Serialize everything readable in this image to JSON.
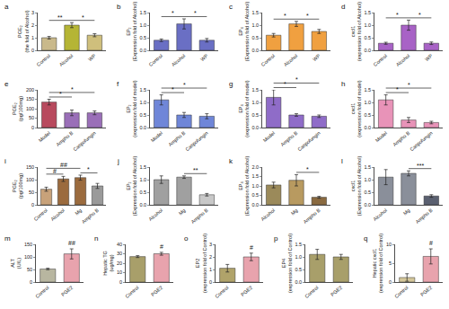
{
  "chart_data": [
    {
      "type": "bar",
      "title": "a",
      "ylabel": "PGE₂ (the fold of Alcohol)",
      "categories": [
        "Control",
        "Alcohol",
        "WP"
      ],
      "values": [
        1.0,
        2.0,
        1.2
      ],
      "errors": [
        0.1,
        0.2,
        0.12
      ],
      "colors": [
        "#c9b98b",
        "#b5b535",
        "#cfbf7c"
      ],
      "ylim": [
        0,
        3
      ],
      "yticks": [
        0,
        1,
        2,
        3
      ],
      "grid": false,
      "annotations": [
        {
          "text": "**",
          "between": [
            "Control",
            "Alcohol"
          ]
        },
        {
          "text": "*",
          "between": [
            "Alcohol",
            "WP"
          ]
        }
      ]
    },
    {
      "type": "bar",
      "title": "b",
      "ylabel": "EP₂ (Expression fold of Alcohol)",
      "categories": [
        "Control",
        "Alcohol",
        "WP"
      ],
      "values": [
        0.4,
        1.05,
        0.4
      ],
      "errors": [
        0.05,
        0.2,
        0.07
      ],
      "colors": [
        "#6a6fc4",
        "#6a6fc4",
        "#6a6fc4"
      ],
      "ylim": [
        0,
        1.5
      ],
      "yticks": [
        {
          "value": 0,
          "label": "0.0"
        },
        0.5,
        {
          "value": 1,
          "label": "1.0"
        },
        1.5
      ],
      "grid": false,
      "annotations": [
        {
          "text": "*",
          "between": [
            "Control",
            "Alcohol"
          ]
        },
        {
          "text": "*",
          "between": [
            "Alcohol",
            "WP"
          ]
        }
      ]
    },
    {
      "type": "bar",
      "title": "c",
      "ylabel": "EP₄ (Expression fold of Alcohol)",
      "categories": [
        "Control",
        "Alcohol",
        "WP"
      ],
      "values": [
        0.6,
        1.05,
        0.75
      ],
      "errors": [
        0.07,
        0.1,
        0.08
      ],
      "colors": [
        "#f0a040",
        "#f0a040",
        "#f0a040"
      ],
      "ylim": [
        0,
        1.5
      ],
      "yticks": [
        {
          "value": 0,
          "label": "0.0"
        },
        0.5,
        {
          "value": 1,
          "label": "1.0"
        },
        1.5
      ],
      "grid": false,
      "annotations": [
        {
          "text": "*",
          "between": [
            "Control",
            "Alcohol"
          ]
        },
        {
          "text": "*",
          "between": [
            "Alcohol",
            "WP"
          ]
        }
      ]
    },
    {
      "type": "bar",
      "title": "d",
      "ylabel": "cxcl1 (expression fold of Alcohol)",
      "categories": [
        "Control",
        "Alcohol",
        "WP"
      ],
      "values": [
        0.28,
        1.0,
        0.28
      ],
      "errors": [
        0.04,
        0.2,
        0.05
      ],
      "colors": [
        "#a862c6",
        "#a862c6",
        "#a862c6"
      ],
      "ylim": [
        0,
        1.5
      ],
      "yticks": [
        {
          "value": 0,
          "label": "0.0"
        },
        0.5,
        {
          "value": 1,
          "label": "1.0"
        },
        1.5
      ],
      "grid": false,
      "annotations": [
        {
          "text": "*",
          "between": [
            "Control",
            "Alcohol"
          ]
        },
        {
          "text": "*",
          "between": [
            "Alcohol",
            "WP"
          ]
        }
      ]
    },
    {
      "type": "bar",
      "title": "e",
      "ylabel": "PGE₂ (pg/100mg)",
      "categories": [
        "Model",
        "Ampho B",
        "Caspofungin"
      ],
      "values": [
        135,
        78,
        78
      ],
      "errors": [
        15,
        15,
        10
      ],
      "colors": [
        "#b84a5e",
        "#9a6fb8",
        "#9a6fb8"
      ],
      "ylim": [
        0,
        200
      ],
      "yticks": [
        0,
        50,
        100,
        150,
        200
      ],
      "grid": false,
      "annotations": [
        {
          "text": "*",
          "between": [
            "Model",
            "Ampho B"
          ]
        },
        {
          "text": "*",
          "between": [
            "Model",
            "Caspofungin"
          ]
        }
      ]
    },
    {
      "type": "bar",
      "title": "f",
      "ylabel": "EP₂ (expression fold of model)",
      "categories": [
        "Model",
        "Ampho B",
        "Caspofungin"
      ],
      "values": [
        1.1,
        0.5,
        0.45
      ],
      "errors": [
        0.2,
        0.1,
        0.1
      ],
      "colors": [
        "#6f86d8",
        "#6f86d8",
        "#6f86d8"
      ],
      "ylim": [
        0,
        1.5
      ],
      "yticks": [
        {
          "value": 0,
          "label": "0.0"
        },
        0.5,
        {
          "value": 1,
          "label": "1.0"
        },
        1.5
      ],
      "grid": false,
      "annotations": [
        {
          "text": "*",
          "between": [
            "Model",
            "Ampho B"
          ]
        },
        {
          "text": "*",
          "between": [
            "Model",
            "Caspofungin"
          ]
        }
      ]
    },
    {
      "type": "bar",
      "title": "g",
      "ylabel": "EP₄ (expression fold of model)",
      "categories": [
        "Model",
        "Ampho B",
        "Caspofungin"
      ],
      "values": [
        1.2,
        0.5,
        0.45
      ],
      "errors": [
        0.3,
        0.05,
        0.05
      ],
      "colors": [
        "#8f6cc8",
        "#8f6cc8",
        "#8f6cc8"
      ],
      "ylim": [
        0,
        1.5
      ],
      "yticks": [
        {
          "value": 0,
          "label": "0.0"
        },
        0.5,
        {
          "value": 1,
          "label": "1.0"
        },
        1.5
      ],
      "grid": false,
      "annotations": [
        {
          "text": "*",
          "between": [
            "Model",
            "Ampho B"
          ]
        },
        {
          "text": "*",
          "between": [
            "Model",
            "Caspofungin"
          ]
        }
      ]
    },
    {
      "type": "bar",
      "title": "h",
      "ylabel": "cxcl1 (expression fold of model)",
      "categories": [
        "Model",
        "Ampho B",
        "Caspofungin"
      ],
      "values": [
        1.1,
        0.3,
        0.2
      ],
      "errors": [
        0.2,
        0.1,
        0.05
      ],
      "colors": [
        "#e893b8",
        "#e893b8",
        "#e893b8"
      ],
      "ylim": [
        0,
        1.5
      ],
      "yticks": [
        {
          "value": 0,
          "label": "0.0"
        },
        0.5,
        {
          "value": 1,
          "label": "1.0"
        },
        1.5
      ],
      "grid": false,
      "annotations": [
        {
          "text": "*",
          "between": [
            "Model",
            "Ampho B"
          ]
        },
        {
          "text": "*",
          "between": [
            "Model",
            "Caspofungin"
          ]
        }
      ]
    },
    {
      "type": "bar",
      "title": "i",
      "ylabel": "PGE₂ (pg/100mg)",
      "categories": [
        "Control",
        "Alcohol",
        "Mg",
        "Ampho B"
      ],
      "values": [
        62,
        103,
        108,
        75
      ],
      "errors": [
        8,
        10,
        10,
        10
      ],
      "colors": [
        "#c8a27a",
        "#9b6b3e",
        "#9b6b3e",
        "#9a9a9a"
      ],
      "ylim": [
        0,
        150
      ],
      "yticks": [
        0,
        50,
        100,
        150
      ],
      "grid": false,
      "annotations": [
        {
          "text": "#",
          "between": [
            "Control",
            "Alcohol"
          ]
        },
        {
          "text": "##",
          "between": [
            "Control",
            "Mg"
          ]
        },
        {
          "text": "*",
          "between": [
            "Mg",
            "Ampho B"
          ]
        }
      ]
    },
    {
      "type": "bar",
      "title": "j",
      "ylabel": "EP₂ (Expression fold of Alcohol)",
      "categories": [
        "Alcohol",
        "Mg",
        "Ampho B"
      ],
      "values": [
        1.0,
        1.1,
        0.4
      ],
      "errors": [
        0.15,
        0.05,
        0.05
      ],
      "colors": [
        "#a0a0a0",
        "#a0a0a0",
        "#c8c8c8"
      ],
      "ylim": [
        0,
        1.5
      ],
      "yticks": [
        {
          "value": 0,
          "label": "0.0"
        },
        0.5,
        {
          "value": 1,
          "label": "1.0"
        },
        1.5
      ],
      "grid": false,
      "annotations": [
        {
          "text": "**",
          "between": [
            "Mg",
            "Ampho B"
          ]
        }
      ]
    },
    {
      "type": "bar",
      "title": "k",
      "ylabel": "EP₄ (Expression fold of Alcohol)",
      "categories": [
        "Alcohol",
        "Mg",
        "Ampho B"
      ],
      "values": [
        1.05,
        1.3,
        0.4
      ],
      "errors": [
        0.15,
        0.3,
        0.05
      ],
      "colors": [
        "#9b8a5a",
        "#b89a60",
        "#8a6a40"
      ],
      "ylim": [
        0,
        2
      ],
      "yticks": [
        {
          "value": 0,
          "label": "0.0"
        },
        0.5,
        {
          "value": 1,
          "label": "1.0"
        },
        1.5,
        {
          "value": 2,
          "label": "2.0"
        }
      ],
      "grid": false,
      "annotations": [
        {
          "text": "*",
          "between": [
            "Mg",
            "Ampho B"
          ]
        }
      ]
    },
    {
      "type": "bar",
      "title": "l",
      "ylabel": "cxcl1 (Expression fold of Alcohol)",
      "categories": [
        "Alcohol",
        "Mg",
        "Ampho B"
      ],
      "values": [
        1.1,
        1.25,
        0.35
      ],
      "errors": [
        0.3,
        0.1,
        0.05
      ],
      "colors": [
        "#8a8f9a",
        "#8a8f9a",
        "#5a6070"
      ],
      "ylim": [
        0,
        1.5
      ],
      "yticks": [
        {
          "value": 0,
          "label": "0.0"
        },
        0.5,
        {
          "value": 1,
          "label": "1.0"
        },
        1.5
      ],
      "grid": false,
      "annotations": [
        {
          "text": "***",
          "between": [
            "Mg",
            "Ampho B"
          ]
        }
      ]
    },
    {
      "type": "bar",
      "title": "m",
      "ylabel": "ALT (U/L)",
      "categories": [
        "Control",
        "PGE2"
      ],
      "values": [
        52,
        112
      ],
      "errors": [
        3,
        20
      ],
      "colors": [
        "#b8b6a0",
        "#e8a3ad"
      ],
      "ylim": [
        0,
        150
      ],
      "yticks": [
        0,
        50,
        100,
        150
      ],
      "grid": false,
      "annotations": [
        {
          "text": "##",
          "at": "PGE2"
        }
      ]
    },
    {
      "type": "bar",
      "title": "n",
      "ylabel": "Hepatic TG (ug/mg)",
      "categories": [
        "Control",
        "PGE2"
      ],
      "values": [
        27,
        30
      ],
      "errors": [
        1,
        1.5
      ],
      "colors": [
        "#a89f6a",
        "#e8a3ad"
      ],
      "ylim": [
        0,
        40
      ],
      "yticks": [
        0,
        10,
        20,
        30,
        40
      ],
      "grid": false,
      "annotations": [
        {
          "text": "#",
          "at": "PGE2"
        }
      ]
    },
    {
      "type": "bar",
      "title": "o",
      "ylabel": "EP2 (expression fold of Control)",
      "categories": [
        "Control",
        "PGE2"
      ],
      "values": [
        1.1,
        2.0
      ],
      "errors": [
        0.3,
        0.3
      ],
      "colors": [
        "#b0a36a",
        "#e8a3ad"
      ],
      "ylim": [
        0,
        3
      ],
      "yticks": [
        0,
        1,
        2,
        3
      ],
      "grid": false,
      "annotations": [
        {
          "text": "#",
          "at": "PGE2"
        }
      ]
    },
    {
      "type": "bar",
      "title": "p",
      "ylabel": "EP4 (expression fold of Control)",
      "categories": [
        "Control",
        "PGE2"
      ],
      "values": [
        1.1,
        1.0
      ],
      "errors": [
        0.2,
        0.1
      ],
      "colors": [
        "#a89f6a",
        "#a89f6a"
      ],
      "ylim": [
        0,
        1.5
      ],
      "yticks": [
        {
          "value": 0,
          "label": "0.0"
        },
        0.5,
        {
          "value": 1,
          "label": "1.0"
        },
        1.5
      ],
      "grid": false,
      "annotations": []
    },
    {
      "type": "bar",
      "title": "q",
      "ylabel": "Hepatic cxcl1 (expression fold of Control)",
      "categories": [
        "Control",
        "PGE2"
      ],
      "values": [
        1.2,
        6.8
      ],
      "errors": [
        1,
        2
      ],
      "colors": [
        "#d4c79a",
        "#e8a3ad"
      ],
      "ylim": [
        0,
        10
      ],
      "yticks": [
        0,
        5,
        10
      ],
      "grid": false,
      "annotations": [
        {
          "text": "#",
          "at": "PGE2"
        }
      ]
    }
  ]
}
